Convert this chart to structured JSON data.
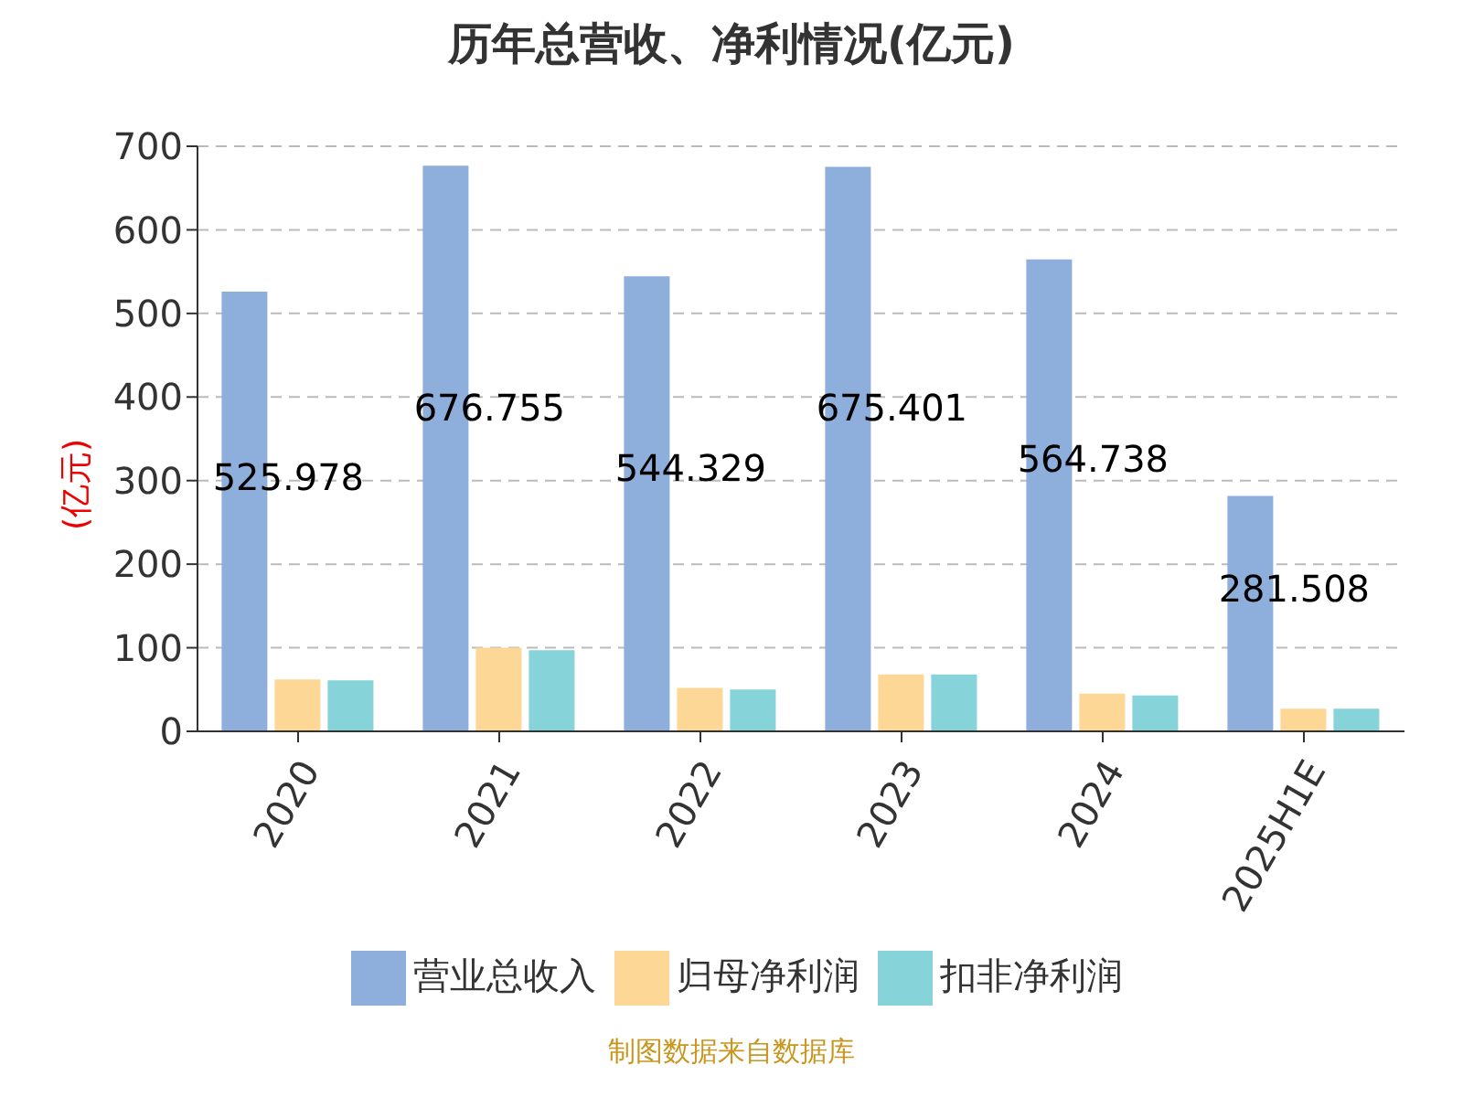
{
  "chart_data": {
    "type": "bar",
    "title": "历年总营收、净利情况(亿元)",
    "ylabel": "(亿元)",
    "categories": [
      "2020",
      "2021",
      "2022",
      "2023",
      "2024",
      "2025H1E"
    ],
    "series": [
      {
        "name": "营业总收入",
        "color": "#8eaedb",
        "values": [
          525.978,
          676.755,
          544.329,
          675.401,
          564.738,
          281.508
        ],
        "value_labels": [
          "525.978",
          "676.755",
          "544.329",
          "675.401",
          "564.738",
          "281.508"
        ]
      },
      {
        "name": "归母净利润",
        "color": "#fdd795",
        "values": [
          62,
          100,
          52,
          68,
          45,
          27
        ]
      },
      {
        "name": "扣非净利润",
        "color": "#86d3d9",
        "values": [
          61,
          97,
          50,
          68,
          43,
          27
        ]
      }
    ],
    "ylim": [
      0,
      700
    ],
    "yticks": [
      0,
      100,
      200,
      300,
      400,
      500,
      600,
      700
    ],
    "grid": "y",
    "legend": "bottom",
    "annotations": [
      "制图数据来自数据库"
    ]
  }
}
